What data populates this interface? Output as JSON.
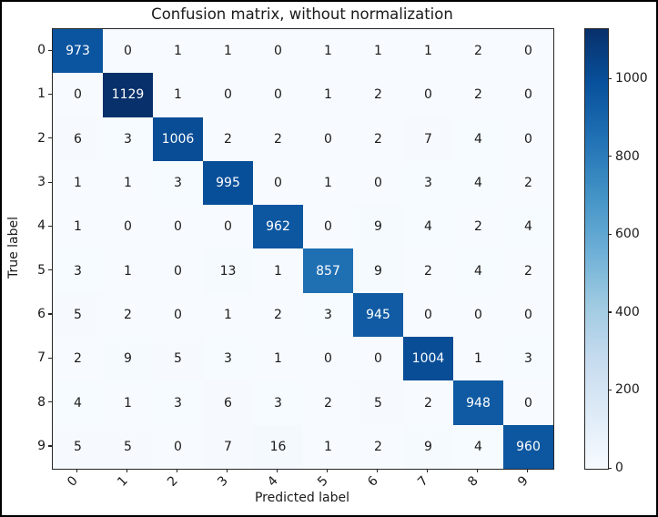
{
  "chart_data": {
    "type": "heatmap",
    "title": "Confusion matrix, without normalization",
    "xlabel": "Predicted label",
    "ylabel": "True label",
    "x_tick_labels": [
      "0",
      "1",
      "2",
      "3",
      "4",
      "5",
      "6",
      "7",
      "8",
      "9"
    ],
    "y_tick_labels": [
      "0",
      "1",
      "2",
      "3",
      "4",
      "5",
      "6",
      "7",
      "8",
      "9"
    ],
    "matrix": [
      [
        973,
        0,
        1,
        1,
        0,
        1,
        1,
        1,
        2,
        0
      ],
      [
        0,
        1129,
        1,
        0,
        0,
        1,
        2,
        0,
        2,
        0
      ],
      [
        6,
        3,
        1006,
        2,
        2,
        0,
        2,
        7,
        4,
        0
      ],
      [
        1,
        1,
        3,
        995,
        0,
        1,
        0,
        3,
        4,
        2
      ],
      [
        1,
        0,
        0,
        0,
        962,
        0,
        9,
        4,
        2,
        4
      ],
      [
        3,
        1,
        0,
        13,
        1,
        857,
        9,
        2,
        4,
        2
      ],
      [
        5,
        2,
        0,
        1,
        2,
        3,
        945,
        0,
        0,
        0
      ],
      [
        2,
        9,
        5,
        3,
        1,
        0,
        0,
        1004,
        1,
        3
      ],
      [
        4,
        1,
        3,
        6,
        3,
        2,
        5,
        2,
        948,
        0
      ],
      [
        5,
        5,
        0,
        7,
        16,
        1,
        2,
        9,
        4,
        960
      ]
    ],
    "vmin": 0,
    "vmax": 1129,
    "colormap_name": "Blues",
    "colormap_stops": [
      "#f7fbff",
      "#deebf7",
      "#c6dbef",
      "#9ecae1",
      "#6baed6",
      "#4292c6",
      "#2171b5",
      "#08519c",
      "#08306b"
    ],
    "colorbar_ticks": [
      0,
      200,
      400,
      600,
      800,
      1000
    ],
    "cell_text_color_on_dark": "#ffffff",
    "cell_text_color_on_light": "#1a1a1a",
    "legend_position": "right-colorbar",
    "grid": "off"
  }
}
